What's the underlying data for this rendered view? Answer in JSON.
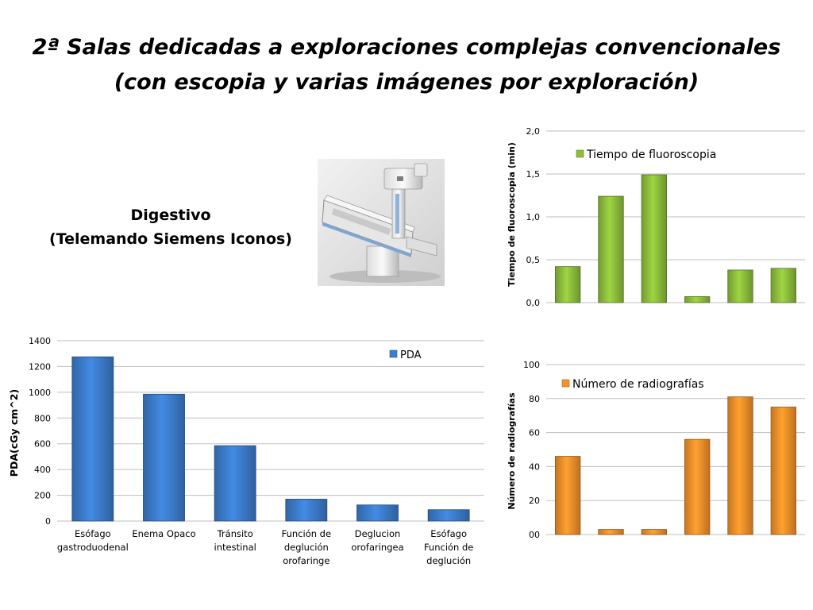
{
  "slide": {
    "title_line1": "2ª Salas dedicadas a exploraciones complejas convencionales",
    "title_line2": "(con escopia y varias imágenes por exploración)",
    "device_line1": "Digestivo",
    "device_line2": "(Telemando Siemens Iconos)"
  },
  "colors": {
    "green": "#8dbe3c",
    "blue": "#3c7ccc",
    "orange": "#f3902a",
    "grid": "#bfbfbf"
  },
  "chart_data": [
    {
      "type": "bar",
      "title": "",
      "xlabel": "",
      "ylabel": "PDA(cGy cm^2)",
      "ylim": [
        0,
        1400
      ],
      "yticks": [
        "0",
        "200",
        "400",
        "600",
        "800",
        "1000",
        "1200",
        "1400"
      ],
      "categories": [
        [
          "Esófago",
          "gastroduodenal"
        ],
        [
          "Enema Opaco"
        ],
        [
          "Tránsito",
          "intestinal"
        ],
        [
          "Función de",
          "deglución",
          "orofaringe"
        ],
        [
          "Deglucion",
          "orofaringea"
        ],
        [
          "Esófago",
          "Función de",
          "deglución"
        ]
      ],
      "series": [
        {
          "name": "PDA",
          "values": [
            1275,
            985,
            585,
            170,
            125,
            88
          ]
        }
      ],
      "grid": true,
      "legend": "top-right"
    },
    {
      "type": "bar",
      "title": "",
      "xlabel": "",
      "ylabel": "Tiempo de fluoroscopia (min)",
      "ylim": [
        0,
        2.0
      ],
      "yticks": [
        "0,0",
        "0,5",
        "1,0",
        "1,5",
        "2,0"
      ],
      "series": [
        {
          "name": "Tiempo de fluoroscopia",
          "values": [
            0.42,
            1.24,
            1.49,
            0.07,
            0.38,
            0.4
          ]
        }
      ],
      "grid": true,
      "legend": "top"
    },
    {
      "type": "bar",
      "title": "",
      "xlabel": "",
      "ylabel": "Número de radiografías",
      "ylim": [
        0,
        100
      ],
      "yticks": [
        "00",
        "20",
        "40",
        "60",
        "80",
        "100"
      ],
      "series": [
        {
          "name": "Número de radiografías",
          "values": [
            46,
            3,
            3,
            56,
            81,
            75
          ]
        }
      ],
      "grid": true,
      "legend": "top"
    }
  ]
}
